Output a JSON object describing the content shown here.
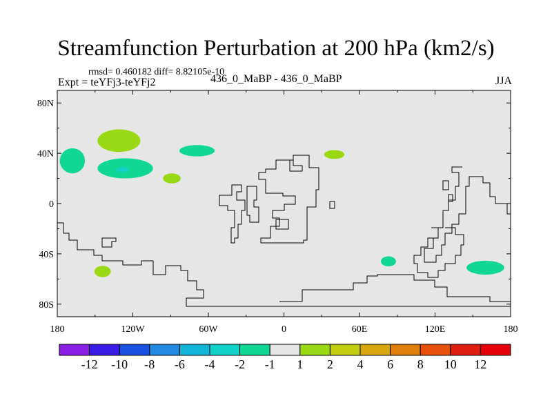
{
  "chart_data": {
    "type": "heatmap",
    "title": "Streamfunction Perturbation at 200 hPa (km2/s)",
    "left_string_top": "rmsd= 0.460182 diff= 8.82105e-10",
    "left_string": "Expt = teYFj3-teYFj2",
    "center_string": "436_0_MaBP - 436_0_MaBP",
    "right_string": "JJA",
    "x_ticks": [
      {
        "lon": -180,
        "label": "180"
      },
      {
        "lon": -120,
        "label": "120W"
      },
      {
        "lon": -60,
        "label": "60W"
      },
      {
        "lon": 0,
        "label": "0"
      },
      {
        "lon": 60,
        "label": "60E"
      },
      {
        "lon": 120,
        "label": "120E"
      },
      {
        "lon": 180,
        "label": "180"
      }
    ],
    "y_ticks": [
      {
        "lat": 80,
        "label": "80N"
      },
      {
        "lat": 40,
        "label": "40N"
      },
      {
        "lat": 0,
        "label": "0"
      },
      {
        "lat": -40,
        "label": "40S"
      },
      {
        "lat": -80,
        "label": "80S"
      }
    ],
    "xlim": [
      -180,
      180
    ],
    "ylim": [
      -90,
      90
    ],
    "background_color": "#e6e6e6",
    "colorbar": {
      "levels": [
        "-12",
        "-10",
        "-8",
        "-6",
        "-4",
        "-2",
        "-1",
        "1",
        "2",
        "4",
        "6",
        "8",
        "10",
        "12"
      ],
      "colors": [
        "#8a1fe6",
        "#3a1ce6",
        "#1a52e0",
        "#1f8ae0",
        "#12b4d8",
        "#10d2c8",
        "#10d894",
        "#e6e6e6",
        "#9ad814",
        "#c2cc10",
        "#d6a80c",
        "#e07e0a",
        "#e6500a",
        "#e01e10",
        "#e6000a"
      ]
    },
    "anomalies": [
      {
        "lon": -131,
        "lat": 50,
        "rlon": 17,
        "rlat": 9,
        "level": "1 to 2"
      },
      {
        "lon": -168,
        "lat": 34,
        "rlon": 10,
        "rlat": 10,
        "level": "-2 to -1"
      },
      {
        "lon": -126,
        "lat": 28,
        "rlon": 22,
        "rlat": 8,
        "level": "-2 to -1"
      },
      {
        "lon": -128,
        "lat": 27,
        "rlon": 5,
        "rlat": 2,
        "level": "-4 to -2"
      },
      {
        "lon": -69,
        "lat": 42,
        "rlon": 14,
        "rlat": 4.5,
        "level": "-2 to -1"
      },
      {
        "lon": -89,
        "lat": 20,
        "rlon": 7,
        "rlat": 4,
        "level": "1 to 2"
      },
      {
        "lon": 40,
        "lat": 39,
        "rlon": 8,
        "rlat": 3.5,
        "level": "1 to 2"
      },
      {
        "lon": -144,
        "lat": -54,
        "rlon": 6.5,
        "rlat": 4.5,
        "level": "1 to 2"
      },
      {
        "lon": 83,
        "lat": -46,
        "rlon": 6,
        "rlat": 4,
        "level": "-2 to -1"
      },
      {
        "lon": 160,
        "lat": -51,
        "rlon": 15,
        "rlat": 5.5,
        "level": "-2 to -1"
      }
    ]
  }
}
